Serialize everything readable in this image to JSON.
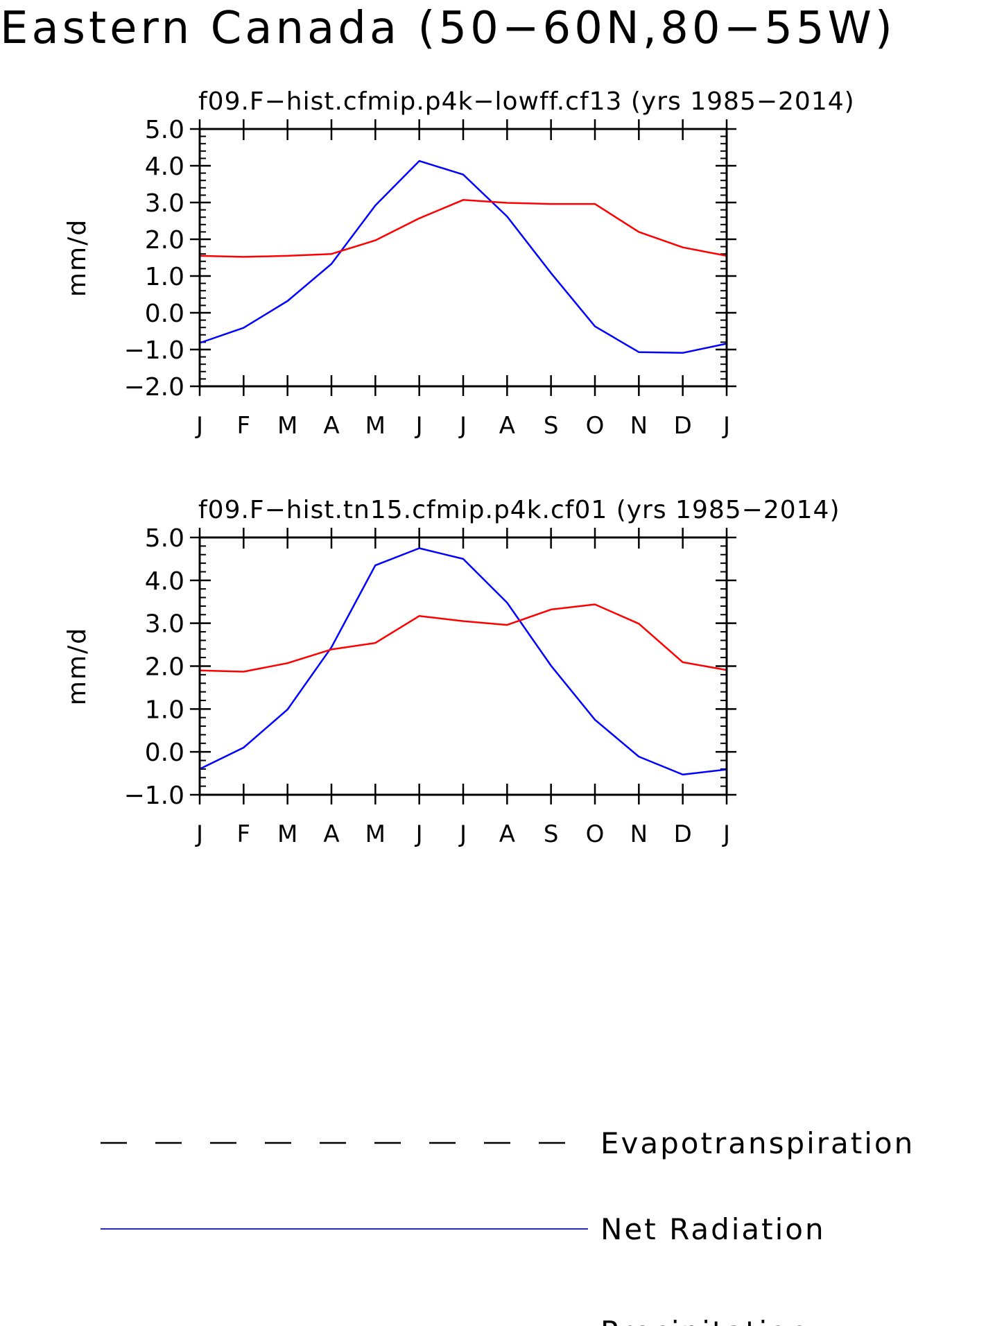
{
  "figure": {
    "title": "Eastern Canada (50−60N,80−55W)"
  },
  "chart_data": [
    {
      "type": "line",
      "title": "f09.F−hist.cfmip.p4k−lowff.cf13 (yrs 1985−2014)",
      "ylabel": "mm/d",
      "xlabel": "",
      "categories": [
        "J",
        "F",
        "M",
        "A",
        "M",
        "J",
        "J",
        "A",
        "S",
        "O",
        "N",
        "D",
        "J"
      ],
      "ylim": [
        -2.0,
        5.0
      ],
      "yticks": [
        -2.0,
        -1.0,
        0.0,
        1.0,
        2.0,
        3.0,
        4.0,
        5.0
      ],
      "ytick_labels": [
        "−2.0",
        "−1.0",
        "0.0",
        "1.0",
        "2.0",
        "3.0",
        "4.0",
        "5.0"
      ],
      "series": [
        {
          "name": "Net Radiation",
          "color": "#0000ff",
          "values": [
            -0.82,
            -0.41,
            0.32,
            1.33,
            2.92,
            4.13,
            3.76,
            2.62,
            1.08,
            -0.37,
            -1.07,
            -1.09,
            -0.84
          ]
        },
        {
          "name": "Precipitation",
          "color": "#ff0000",
          "values": [
            1.55,
            1.52,
            1.55,
            1.6,
            1.97,
            2.57,
            3.07,
            2.99,
            2.96,
            2.96,
            2.2,
            1.78,
            1.55
          ]
        }
      ]
    },
    {
      "type": "line",
      "title": "f09.F−hist.tn15.cfmip.p4k.cf01 (yrs 1985−2014)",
      "ylabel": "mm/d",
      "xlabel": "",
      "categories": [
        "J",
        "F",
        "M",
        "A",
        "M",
        "J",
        "J",
        "A",
        "S",
        "O",
        "N",
        "D",
        "J"
      ],
      "ylim": [
        -1.0,
        5.0
      ],
      "yticks": [
        -1.0,
        0.0,
        1.0,
        2.0,
        3.0,
        4.0,
        5.0
      ],
      "ytick_labels": [
        "−1.0",
        "0.0",
        "1.0",
        "2.0",
        "3.0",
        "4.0",
        "5.0"
      ],
      "series": [
        {
          "name": "Net Radiation",
          "color": "#0000ff",
          "values": [
            -0.4,
            0.1,
            0.99,
            2.44,
            4.35,
            4.75,
            4.5,
            3.48,
            2.01,
            0.75,
            -0.11,
            -0.53,
            -0.41
          ]
        },
        {
          "name": "Precipitation",
          "color": "#ff0000",
          "values": [
            1.9,
            1.87,
            2.07,
            2.39,
            2.54,
            3.17,
            3.05,
            2.96,
            3.32,
            3.44,
            2.99,
            2.09,
            1.91
          ]
        }
      ]
    }
  ],
  "legend": {
    "placement": "bottom",
    "items": [
      {
        "label": "Evapotranspiration",
        "color": "#000000",
        "style": "dashed"
      },
      {
        "label": "Net Radiation",
        "color": "#0000ff",
        "style": "solid"
      },
      {
        "label": "Precipitation",
        "color": "#ff0000",
        "style": "solid"
      }
    ]
  }
}
